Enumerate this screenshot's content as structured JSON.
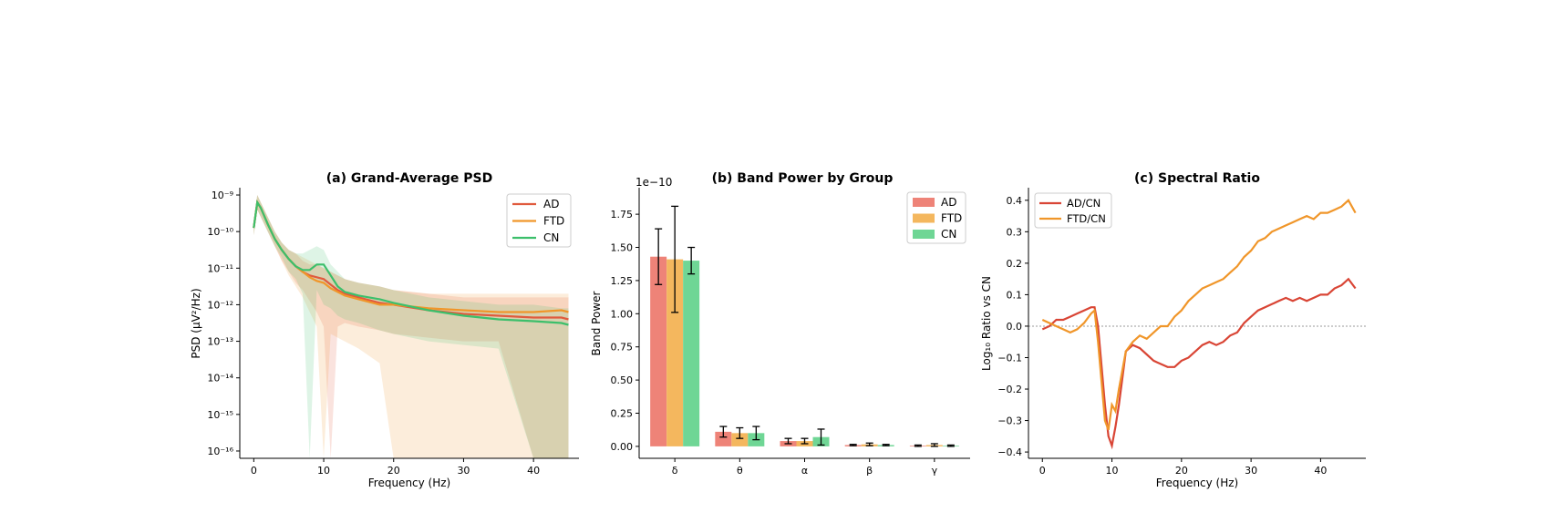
{
  "chart_data": [
    {
      "type": "line",
      "title": "(a) Grand-Average PSD",
      "xlabel": "Frequency (Hz)",
      "ylabel": "PSD (µV²/Hz)",
      "yscale": "log",
      "xlim": [
        -2,
        46.5
      ],
      "ylim_exponent": [
        -16.2,
        -8.8
      ],
      "xticks": [
        0,
        10,
        20,
        30,
        40
      ],
      "yticks": [
        {
          "exp": -9,
          "label": "10⁻⁹"
        },
        {
          "exp": -10,
          "label": "10⁻¹⁰"
        },
        {
          "exp": -11,
          "label": "10⁻¹¹"
        },
        {
          "exp": -12,
          "label": "10⁻¹²"
        },
        {
          "exp": -13,
          "label": "10⁻¹³"
        },
        {
          "exp": -14,
          "label": "10⁻¹⁴"
        },
        {
          "exp": -15,
          "label": "10⁻¹⁵"
        },
        {
          "exp": -16,
          "label": "10⁻¹⁶"
        }
      ],
      "legend_position": "top-right",
      "x": [
        0,
        0.5,
        1,
        2,
        3,
        4,
        5,
        6,
        7,
        8,
        9,
        10,
        11,
        12,
        13,
        15,
        18,
        20,
        25,
        30,
        35,
        40,
        44,
        45
      ],
      "series": [
        {
          "name": "AD",
          "color": "#e05a3d",
          "log10_values": [
            -9.9,
            -9.2,
            -9.35,
            -9.8,
            -10.2,
            -10.5,
            -10.75,
            -10.95,
            -11.1,
            -11.2,
            -11.25,
            -11.3,
            -11.45,
            -11.6,
            -11.7,
            -11.8,
            -11.95,
            -12.0,
            -12.15,
            -12.25,
            -12.3,
            -12.35,
            -12.35,
            -12.4
          ],
          "band_lower": [
            -10.1,
            -9.4,
            -9.6,
            -10.0,
            -10.4,
            -10.8,
            -11.1,
            -11.4,
            -11.6,
            -11.9,
            -12.2,
            -12.6,
            -16.2,
            -12.6,
            -12.5,
            -12.6,
            -12.7,
            -12.8,
            -12.9,
            -13.0,
            -13.0,
            -16.2,
            -16.2,
            -16.2
          ],
          "band_upper": [
            -9.7,
            -9.0,
            -9.2,
            -9.6,
            -10.0,
            -10.3,
            -10.5,
            -10.6,
            -10.8,
            -10.9,
            -10.9,
            -11.0,
            -11.1,
            -11.2,
            -11.3,
            -11.4,
            -11.5,
            -11.6,
            -11.7,
            -11.8,
            -11.8,
            -11.8,
            -11.8,
            -11.8
          ]
        },
        {
          "name": "FTD",
          "color": "#f0962a",
          "log10_values": [
            -9.9,
            -9.2,
            -9.35,
            -9.8,
            -10.2,
            -10.5,
            -10.75,
            -10.95,
            -11.1,
            -11.25,
            -11.35,
            -11.4,
            -11.55,
            -11.65,
            -11.75,
            -11.85,
            -12.0,
            -12.0,
            -12.1,
            -12.15,
            -12.2,
            -12.2,
            -12.15,
            -12.2
          ],
          "band_lower": [
            -10.1,
            -9.4,
            -9.6,
            -10.0,
            -10.4,
            -10.8,
            -11.2,
            -11.5,
            -11.8,
            -12.2,
            -12.6,
            -16.2,
            -12.8,
            -12.9,
            -13.0,
            -13.2,
            -13.6,
            -16.2,
            -16.2,
            -16.2,
            -16.2,
            -16.2,
            -16.2,
            -16.2
          ],
          "band_upper": [
            -9.7,
            -9.0,
            -9.2,
            -9.6,
            -10.0,
            -10.3,
            -10.5,
            -10.6,
            -10.7,
            -10.8,
            -10.9,
            -11.0,
            -11.1,
            -11.2,
            -11.3,
            -11.4,
            -11.5,
            -11.6,
            -11.7,
            -11.7,
            -11.7,
            -11.7,
            -11.7,
            -11.7
          ]
        },
        {
          "name": "CN",
          "color": "#3cbf6b",
          "log10_values": [
            -9.9,
            -9.2,
            -9.35,
            -9.8,
            -10.2,
            -10.5,
            -10.75,
            -10.95,
            -11.05,
            -11.05,
            -10.9,
            -10.9,
            -11.2,
            -11.5,
            -11.65,
            -11.75,
            -11.85,
            -11.95,
            -12.15,
            -12.3,
            -12.4,
            -12.45,
            -12.5,
            -12.55
          ],
          "band_lower": [
            -10.1,
            -9.4,
            -9.6,
            -10.0,
            -10.4,
            -10.7,
            -11.1,
            -11.3,
            -11.7,
            -16.2,
            -11.6,
            -12.0,
            -12.1,
            -12.3,
            -12.4,
            -12.5,
            -12.7,
            -12.8,
            -13.0,
            -13.1,
            -13.2,
            -16.2,
            -16.2,
            -16.2
          ],
          "band_upper": [
            -9.7,
            -9.0,
            -9.2,
            -9.6,
            -10.0,
            -10.3,
            -10.5,
            -10.6,
            -10.6,
            -10.5,
            -10.4,
            -10.5,
            -10.9,
            -11.1,
            -11.3,
            -11.4,
            -11.5,
            -11.6,
            -11.8,
            -11.9,
            -12.0,
            -12.0,
            -12.1,
            -12.1
          ]
        }
      ]
    },
    {
      "type": "bar",
      "title": "(b) Band Power by Group",
      "xlabel": "",
      "ylabel": "Band Power",
      "offset_label": "1e−10",
      "categories": [
        "δ",
        "θ",
        "α",
        "β",
        "γ"
      ],
      "ylim": [
        -0.09,
        1.95
      ],
      "yticks": [
        {
          "v": 0.0,
          "label": "0.00"
        },
        {
          "v": 0.25,
          "label": "0.25"
        },
        {
          "v": 0.5,
          "label": "0.50"
        },
        {
          "v": 0.75,
          "label": "0.75"
        },
        {
          "v": 1.0,
          "label": "1.00"
        },
        {
          "v": 1.25,
          "label": "1.25"
        },
        {
          "v": 1.5,
          "label": "1.50"
        },
        {
          "v": 1.75,
          "label": "1.75"
        }
      ],
      "legend_position": "top-right",
      "series": [
        {
          "name": "AD",
          "color": "#ee8378",
          "values": [
            1.43,
            0.11,
            0.04,
            0.01,
            0.005
          ],
          "errors": [
            0.21,
            0.04,
            0.02,
            0.005,
            0.005
          ]
        },
        {
          "name": "FTD",
          "color": "#f4b75e",
          "values": [
            1.41,
            0.1,
            0.04,
            0.015,
            0.01
          ],
          "errors": [
            0.4,
            0.04,
            0.02,
            0.01,
            0.01
          ]
        },
        {
          "name": "CN",
          "color": "#6fd695",
          "values": [
            1.4,
            0.1,
            0.07,
            0.01,
            0.005
          ],
          "errors": [
            0.1,
            0.05,
            0.06,
            0.005,
            0.005
          ]
        }
      ]
    },
    {
      "type": "line",
      "title": "(c) Spectral Ratio",
      "xlabel": "Frequency (Hz)",
      "ylabel": "Log₁₀ Ratio vs CN",
      "xlim": [
        -2,
        46.5
      ],
      "ylim": [
        -0.42,
        0.44
      ],
      "xticks": [
        0,
        10,
        20,
        30,
        40
      ],
      "yticks": [
        {
          "v": 0.4,
          "label": "0.4"
        },
        {
          "v": 0.3,
          "label": "0.3"
        },
        {
          "v": 0.2,
          "label": "0.2"
        },
        {
          "v": 0.1,
          "label": "0.1"
        },
        {
          "v": 0.0,
          "label": "0.0"
        },
        {
          "v": -0.1,
          "label": "−0.1"
        },
        {
          "v": -0.2,
          "label": "−0.2"
        },
        {
          "v": -0.3,
          "label": "−0.3"
        },
        {
          "v": -0.4,
          "label": "−0.4"
        }
      ],
      "reference_line": 0,
      "legend_position": "top-left",
      "x": [
        0,
        1,
        2,
        3,
        4,
        5,
        6,
        7,
        7.5,
        8,
        9,
        9.5,
        10,
        10.5,
        11,
        12,
        13,
        14,
        15,
        16,
        17,
        18,
        19,
        20,
        21,
        22,
        23,
        24,
        25,
        26,
        27,
        28,
        29,
        30,
        31,
        32,
        33,
        34,
        35,
        36,
        37,
        38,
        39,
        40,
        41,
        42,
        43,
        44,
        45
      ],
      "series": [
        {
          "name": "AD/CN",
          "color": "#d94535",
          "values": [
            -0.01,
            0.0,
            0.02,
            0.02,
            0.03,
            0.04,
            0.05,
            0.06,
            0.06,
            0.0,
            -0.25,
            -0.35,
            -0.38,
            -0.32,
            -0.25,
            -0.08,
            -0.06,
            -0.07,
            -0.09,
            -0.11,
            -0.12,
            -0.13,
            -0.13,
            -0.11,
            -0.1,
            -0.08,
            -0.06,
            -0.05,
            -0.06,
            -0.05,
            -0.03,
            -0.02,
            0.01,
            0.03,
            0.05,
            0.06,
            0.07,
            0.08,
            0.09,
            0.08,
            0.09,
            0.08,
            0.09,
            0.1,
            0.1,
            0.12,
            0.13,
            0.15,
            0.12
          ]
        },
        {
          "name": "FTD/CN",
          "color": "#f0962a",
          "values": [
            0.02,
            0.01,
            0.0,
            -0.01,
            -0.02,
            -0.01,
            0.01,
            0.04,
            0.05,
            -0.05,
            -0.3,
            -0.33,
            -0.25,
            -0.27,
            -0.2,
            -0.08,
            -0.05,
            -0.03,
            -0.04,
            -0.02,
            0.0,
            0.0,
            0.03,
            0.05,
            0.08,
            0.1,
            0.12,
            0.13,
            0.14,
            0.15,
            0.17,
            0.19,
            0.22,
            0.24,
            0.27,
            0.28,
            0.3,
            0.31,
            0.32,
            0.33,
            0.34,
            0.35,
            0.34,
            0.36,
            0.36,
            0.37,
            0.38,
            0.4,
            0.36
          ]
        }
      ]
    }
  ]
}
